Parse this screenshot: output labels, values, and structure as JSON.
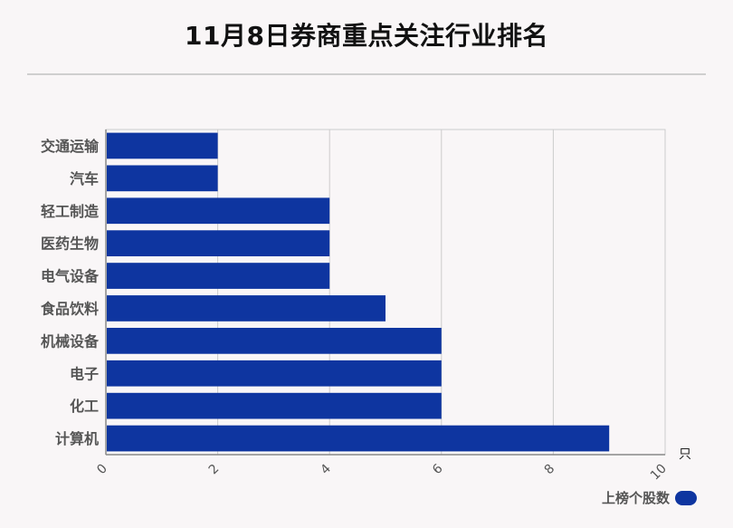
{
  "title": "11月8日券商重点关注行业排名",
  "legend": {
    "label": "上榜个股数"
  },
  "unit": "只",
  "colors": {
    "bar": "#0e35a0",
    "grid": "#cccccc",
    "axis": "#888888",
    "label": "#555555",
    "background": "#f9f6f7"
  },
  "chart_data": {
    "type": "bar",
    "orientation": "horizontal",
    "categories": [
      "交通运输",
      "汽车",
      "轻工制造",
      "医药生物",
      "电气设备",
      "食品饮料",
      "机械设备",
      "电子",
      "化工",
      "计算机"
    ],
    "series": [
      {
        "name": "上榜个股数",
        "values": [
          2,
          2,
          4,
          4,
          4,
          5,
          6,
          6,
          6,
          9
        ]
      }
    ],
    "xlim": [
      0,
      10
    ],
    "x_ticks": [
      0,
      2,
      4,
      6,
      8,
      10
    ],
    "xlabel": "只",
    "grid": true,
    "legend_position": "bottom-right"
  }
}
